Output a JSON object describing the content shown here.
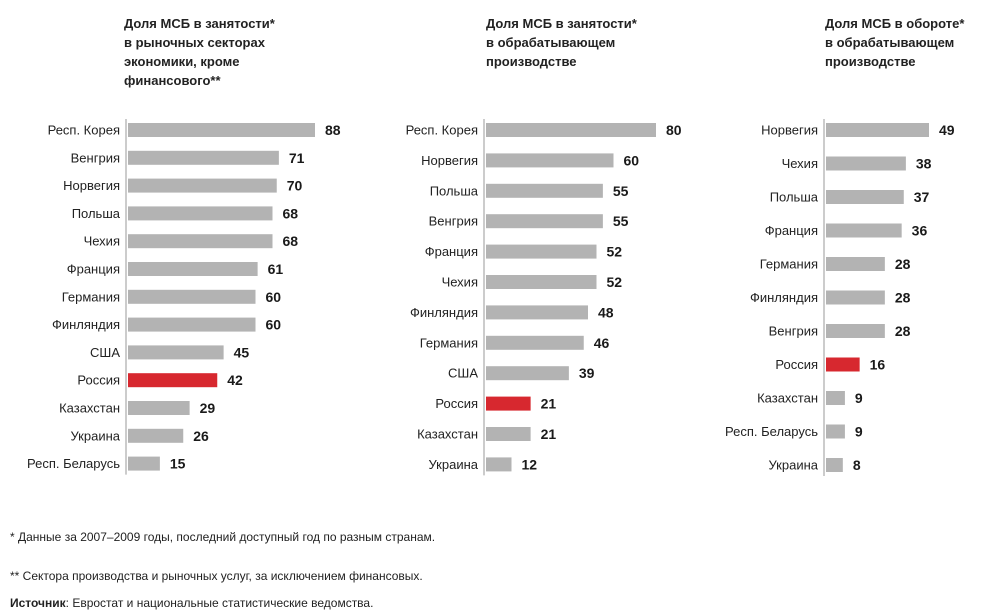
{
  "colors": {
    "bar": "#b3b3b3",
    "highlight": "#d7282f",
    "axis": "#999999"
  },
  "chart_data": [
    {
      "type": "bar",
      "orientation": "horizontal",
      "title_lines": [
        "Доля МСБ в занятости*",
        "в рыночных секторах",
        "экономики, кроме",
        "финансового**"
      ],
      "categories": [
        "Респ. Корея",
        "Венгрия",
        "Норвегия",
        "Польша",
        "Чехия",
        "Франция",
        "Германия",
        "Финляндия",
        "США",
        "Россия",
        "Казахстан",
        "Украина",
        "Респ. Беларусь"
      ],
      "values": [
        88,
        71,
        70,
        68,
        68,
        61,
        60,
        60,
        45,
        42,
        29,
        26,
        15
      ],
      "highlight": "Россия",
      "xlim": [
        0,
        88
      ]
    },
    {
      "type": "bar",
      "orientation": "horizontal",
      "title_lines": [
        "Доля МСБ в занятости*",
        "в обрабатывающем",
        "производстве"
      ],
      "categories": [
        "Респ. Корея",
        "Норвегия",
        "Польша",
        "Венгрия",
        "Франция",
        "Чехия",
        "Финляндия",
        "Германия",
        "США",
        "Россия",
        "Казахстан",
        "Украина"
      ],
      "values": [
        80,
        60,
        55,
        55,
        52,
        52,
        48,
        46,
        39,
        21,
        21,
        12
      ],
      "highlight": "Россия",
      "xlim": [
        0,
        80
      ]
    },
    {
      "type": "bar",
      "orientation": "horizontal",
      "title_lines": [
        "Доля МСБ в обороте*",
        "в обрабатывающем",
        "производстве"
      ],
      "categories": [
        "Норвегия",
        "Чехия",
        "Польша",
        "Франция",
        "Германия",
        "Финляндия",
        "Венгрия",
        "Россия",
        "Казахстан",
        "Респ. Беларусь",
        "Украина"
      ],
      "values": [
        49,
        38,
        37,
        36,
        28,
        28,
        28,
        16,
        9,
        9,
        8
      ],
      "highlight": "Россия",
      "xlim": [
        0,
        49
      ]
    }
  ],
  "footnotes": {
    "note1": "* Данные за 2007–2009 годы, последний доступный год по разным странам.",
    "note2": "** Сектора производства и рыночных услуг, за исключением финансовых.",
    "source_label": "Источник",
    "source_text": ": Евростат и национальные статистические ведомства."
  }
}
